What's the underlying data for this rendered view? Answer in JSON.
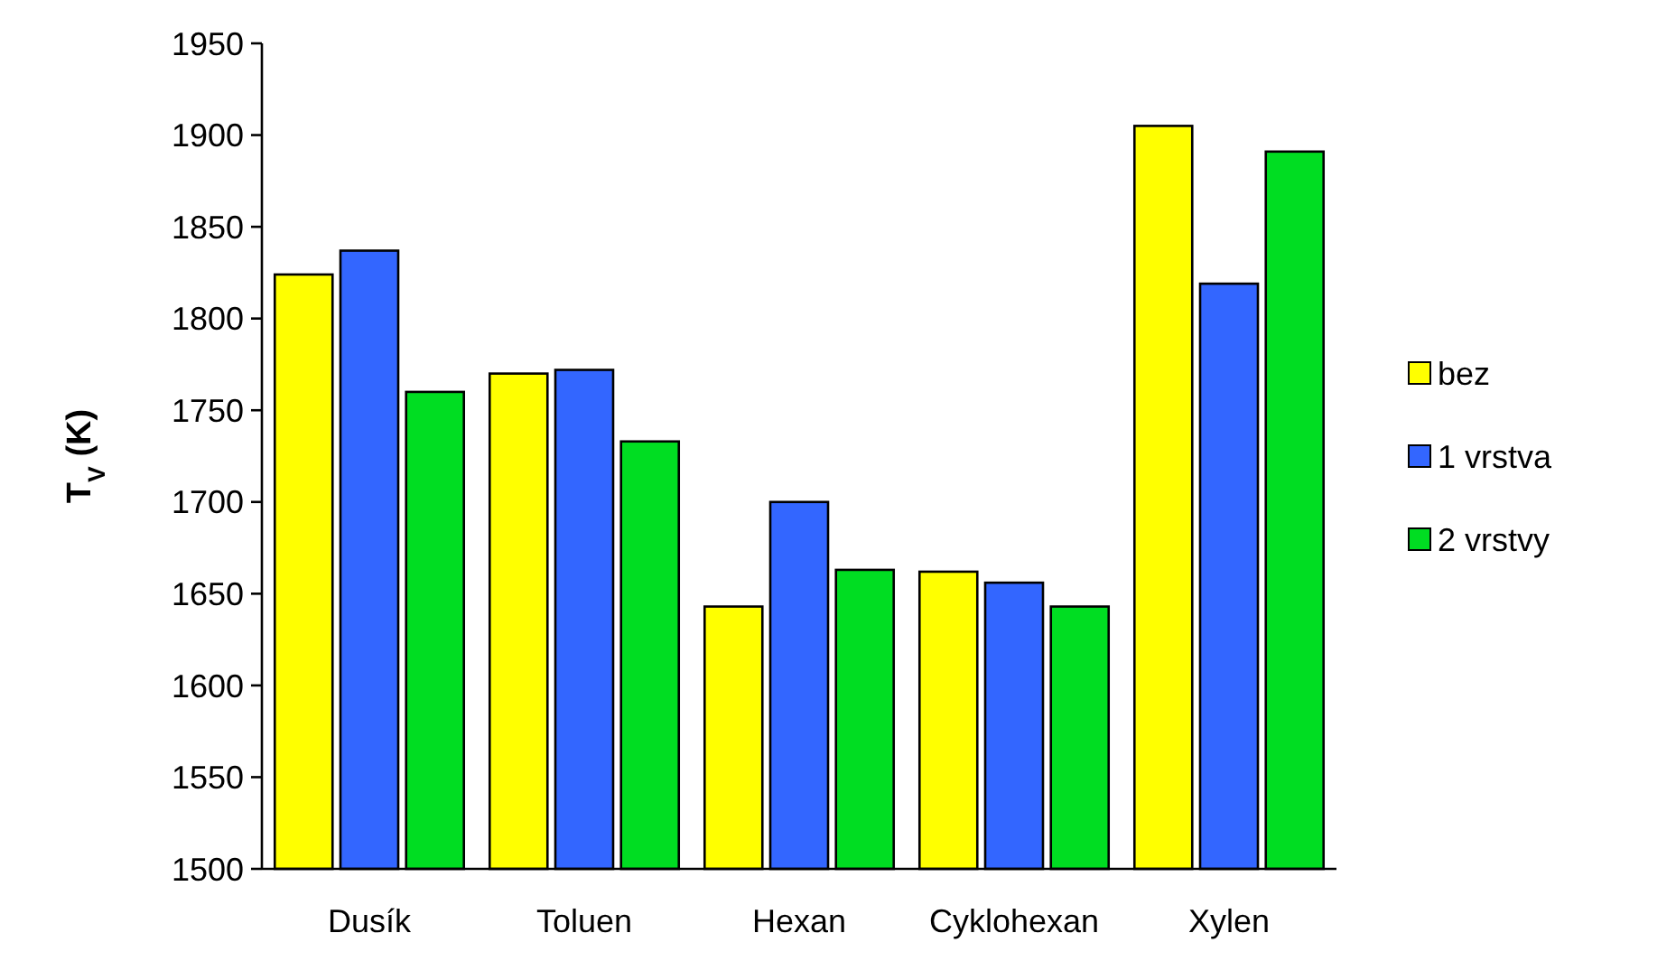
{
  "chart_data": {
    "type": "bar",
    "ylabel": "T$_{V}$ (K)",
    "categories": [
      "Dusík",
      "Toluen",
      "Hexan",
      "Cyklohexan",
      "Xylen"
    ],
    "series": [
      {
        "name": "bez",
        "color": "#ffff00",
        "values": [
          1824,
          1770,
          1643,
          1662,
          1905
        ]
      },
      {
        "name": "1 vrstva",
        "color": "#3366ff",
        "values": [
          1837,
          1772,
          1700,
          1656,
          1819
        ]
      },
      {
        "name": "2 vrstvy",
        "color": "#00dd22",
        "values": [
          1760,
          1733,
          1663,
          1643,
          1891
        ]
      }
    ],
    "ylim": [
      1500,
      1950
    ],
    "yticks": [
      1500,
      1550,
      1600,
      1650,
      1700,
      1750,
      1800,
      1850,
      1900,
      1950
    ],
    "grid": false,
    "legend": "right"
  }
}
